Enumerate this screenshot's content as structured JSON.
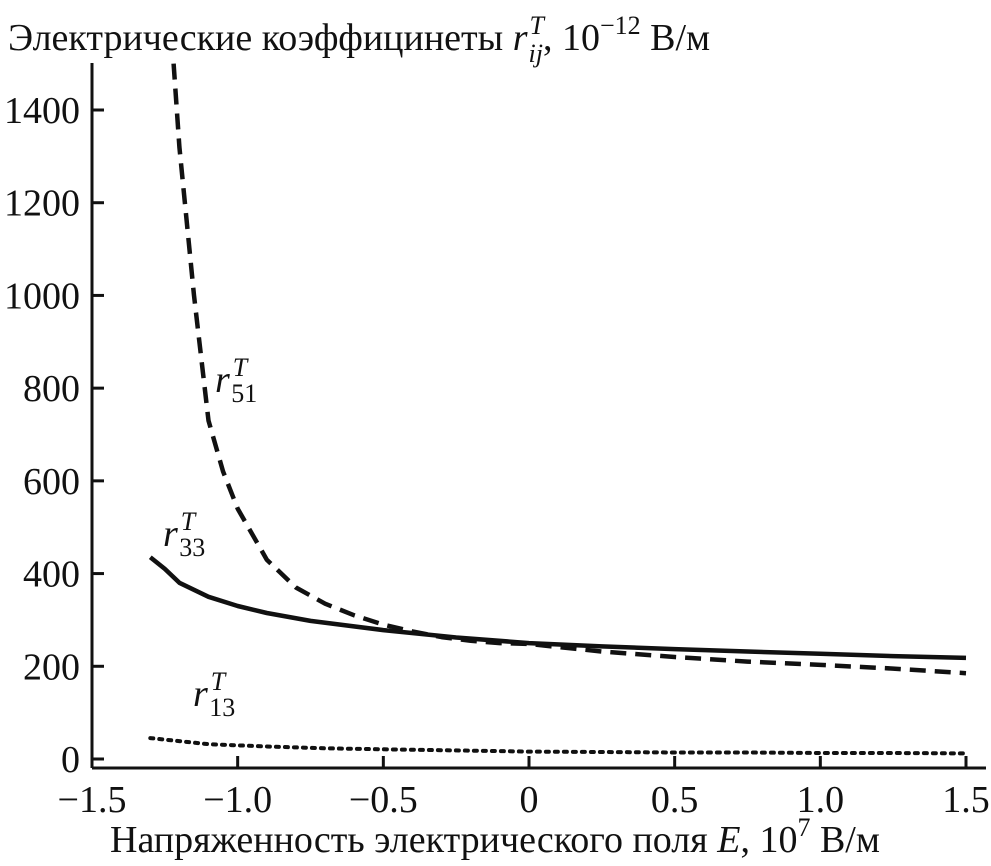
{
  "chart_data": {
    "type": "line",
    "ylabel": {
      "prefix": "Электрические коэффицинеты ",
      "symbol": "r",
      "symbol_sub": "ij",
      "symbol_sup": "T",
      "unit_prefix": ", 10",
      "unit_exp": "−12",
      "unit_suffix": " В/м"
    },
    "xlabel": {
      "prefix": "Напряженность электрического поля ",
      "symbol": "E",
      "unit_prefix": ", 10",
      "unit_exp": "7",
      "unit_suffix": " В/м"
    },
    "xlim": [
      -1.5,
      1.5
    ],
    "ylim": [
      0,
      1500
    ],
    "x_ticks": [
      -1.5,
      -1.0,
      -0.5,
      0,
      0.5,
      1.0,
      1.5
    ],
    "x_tick_labels": [
      "−1.5",
      "−1.0",
      "−0.5",
      "0",
      "0.5",
      "1.0",
      "1.5"
    ],
    "y_ticks": [
      0,
      200,
      400,
      600,
      800,
      1000,
      1200,
      1400
    ],
    "y_tick_labels": [
      "0",
      "200",
      "400",
      "600",
      "800",
      "1000",
      "1200",
      "1400"
    ],
    "grid": false,
    "series": [
      {
        "name": "r51T",
        "label": {
          "symbol": "r",
          "sub": "51",
          "sup": "T"
        },
        "style": "dashed",
        "color": "#111111",
        "x": [
          -1.22,
          -1.2,
          -1.15,
          -1.1,
          -1.05,
          -1.0,
          -0.9,
          -0.8,
          -0.7,
          -0.6,
          -0.5,
          -0.4,
          -0.3,
          -0.2,
          -0.1,
          0.0,
          0.25,
          0.5,
          0.75,
          1.0,
          1.25,
          1.5
        ],
        "y": [
          1500,
          1320,
          1000,
          730,
          620,
          540,
          430,
          370,
          335,
          310,
          290,
          275,
          263,
          255,
          250,
          248,
          232,
          220,
          210,
          203,
          195,
          185
        ]
      },
      {
        "name": "r33T",
        "label": {
          "symbol": "r",
          "sub": "33",
          "sup": "T"
        },
        "style": "solid",
        "color": "#111111",
        "x": [
          -1.3,
          -1.25,
          -1.2,
          -1.1,
          -1.0,
          -0.9,
          -0.75,
          -0.5,
          -0.25,
          0.0,
          0.25,
          0.5,
          0.75,
          1.0,
          1.25,
          1.5
        ],
        "y": [
          435,
          410,
          380,
          350,
          330,
          315,
          298,
          278,
          262,
          250,
          243,
          237,
          232,
          227,
          222,
          218
        ]
      },
      {
        "name": "r13T",
        "label": {
          "symbol": "r",
          "sub": "13",
          "sup": "T"
        },
        "style": "dotted",
        "color": "#111111",
        "x": [
          -1.3,
          -1.1,
          -0.9,
          -0.7,
          -0.5,
          -0.3,
          -0.1,
          0.0,
          0.25,
          0.5,
          0.75,
          1.0,
          1.25,
          1.5
        ],
        "y": [
          45,
          32,
          27,
          23,
          21,
          19,
          17,
          16,
          15,
          14,
          14,
          13,
          13,
          12
        ]
      }
    ]
  }
}
